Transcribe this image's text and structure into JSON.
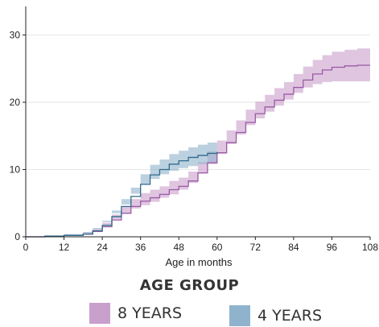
{
  "chart_data": {
    "type": "line",
    "title": "",
    "xlabel": "Age in months",
    "ylabel": "",
    "xlim": [
      0,
      108
    ],
    "ylim": [
      0,
      34
    ],
    "x_ticks": [
      0,
      12,
      24,
      36,
      48,
      60,
      72,
      84,
      96,
      108
    ],
    "y_ticks": [
      0,
      10,
      20,
      30
    ],
    "grid": "horizontal",
    "legend_title": "AGE GROUP",
    "legend_placement": "bottom",
    "series": [
      {
        "name": "8 YEARS",
        "color": "#9b59a6",
        "band_color": "#c99fcc",
        "x": [
          0,
          6,
          12,
          18,
          21,
          24,
          27,
          30,
          33,
          36,
          39,
          42,
          45,
          48,
          51,
          54,
          57,
          60,
          63,
          66,
          69,
          72,
          75,
          78,
          81,
          84,
          87,
          90,
          93,
          96,
          100,
          104,
          108
        ],
        "values": [
          0,
          0.1,
          0.2,
          0.4,
          0.8,
          1.5,
          2.5,
          3.5,
          4.5,
          5.3,
          5.8,
          6.3,
          7.0,
          7.5,
          8.3,
          9.5,
          11.0,
          12.5,
          14.0,
          15.5,
          17.0,
          18.3,
          19.3,
          20.3,
          21.2,
          22.2,
          23.3,
          24.2,
          24.8,
          25.2,
          25.4,
          25.5,
          25.5
        ],
        "lower": [
          0,
          0,
          0.1,
          0.2,
          0.5,
          1.0,
          1.8,
          2.6,
          3.4,
          4.2,
          4.7,
          5.2,
          5.8,
          6.3,
          7.0,
          8.0,
          9.4,
          10.8,
          12.3,
          13.8,
          15.2,
          16.6,
          17.6,
          18.6,
          19.5,
          20.4,
          21.4,
          22.2,
          22.7,
          23.0,
          23.1,
          23.1,
          23.1
        ],
        "upper": [
          0,
          0.2,
          0.3,
          0.7,
          1.2,
          2.1,
          3.3,
          4.5,
          5.6,
          6.5,
          7.0,
          7.5,
          8.3,
          8.8,
          9.7,
          11.1,
          12.7,
          14.3,
          15.8,
          17.3,
          18.9,
          20.1,
          21.1,
          22.1,
          23.0,
          24.2,
          25.3,
          26.3,
          27.0,
          27.5,
          27.8,
          28.0,
          28.0
        ]
      },
      {
        "name": "4 YEARS",
        "color": "#2f6b8a",
        "band_color": "#8fb3cc",
        "x": [
          0,
          6,
          12,
          18,
          21,
          24,
          27,
          30,
          33,
          36,
          39,
          42,
          45,
          48,
          51,
          54,
          57,
          60
        ],
        "values": [
          0,
          0.1,
          0.2,
          0.4,
          0.9,
          1.7,
          3.0,
          4.5,
          6.0,
          7.8,
          9.2,
          10.0,
          10.8,
          11.3,
          11.8,
          12.1,
          12.4,
          12.6
        ],
        "lower": [
          0,
          0,
          0.1,
          0.2,
          0.5,
          1.1,
          2.2,
          3.5,
          4.8,
          6.4,
          7.8,
          8.6,
          9.3,
          9.8,
          10.2,
          10.5,
          10.8,
          11.0
        ],
        "upper": [
          0,
          0.2,
          0.4,
          0.7,
          1.3,
          2.4,
          3.9,
          5.6,
          7.3,
          9.3,
          10.7,
          11.5,
          12.3,
          12.8,
          13.3,
          13.7,
          14.0,
          14.3
        ]
      }
    ]
  }
}
